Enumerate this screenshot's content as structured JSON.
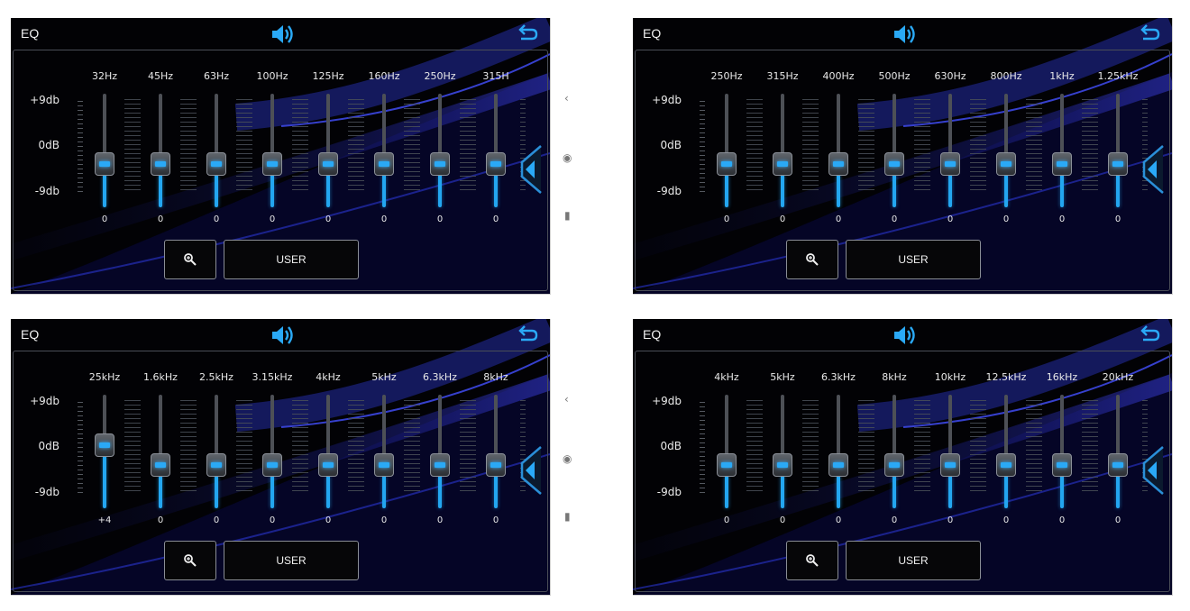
{
  "panels": [
    {
      "title": "EQ",
      "scale": {
        "top": "+9db",
        "mid": "0dB",
        "bottom": "-9db"
      },
      "bands": [
        {
          "freq": "32Hz",
          "value": "0",
          "level": 0
        },
        {
          "freq": "45Hz",
          "value": "0",
          "level": 0
        },
        {
          "freq": "63Hz",
          "value": "0",
          "level": 0
        },
        {
          "freq": "100Hz",
          "value": "0",
          "level": 0
        },
        {
          "freq": "125Hz",
          "value": "0",
          "level": 0
        },
        {
          "freq": "160Hz",
          "value": "0",
          "level": 0
        },
        {
          "freq": "250Hz",
          "value": "0",
          "level": 0
        },
        {
          "freq": "315H",
          "value": "0",
          "level": 0
        }
      ],
      "user_label": "USER"
    },
    {
      "title": "EQ",
      "scale": {
        "top": "+9db",
        "mid": "0dB",
        "bottom": "-9db"
      },
      "bands": [
        {
          "freq": "250Hz",
          "value": "0",
          "level": 0
        },
        {
          "freq": "315Hz",
          "value": "0",
          "level": 0
        },
        {
          "freq": "400Hz",
          "value": "0",
          "level": 0
        },
        {
          "freq": "500Hz",
          "value": "0",
          "level": 0
        },
        {
          "freq": "630Hz",
          "value": "0",
          "level": 0
        },
        {
          "freq": "800Hz",
          "value": "0",
          "level": 0
        },
        {
          "freq": "1kHz",
          "value": "0",
          "level": 0
        },
        {
          "freq": "1.25kHz",
          "value": "0",
          "level": 0
        }
      ],
      "user_label": "USER"
    },
    {
      "title": "EQ",
      "scale": {
        "top": "+9db",
        "mid": "0dB",
        "bottom": "-9db"
      },
      "bands": [
        {
          "freq": "25kHz",
          "value": "+4",
          "level": 4
        },
        {
          "freq": "1.6kHz",
          "value": "0",
          "level": 0
        },
        {
          "freq": "2.5kHz",
          "value": "0",
          "level": 0
        },
        {
          "freq": "3.15kHz",
          "value": "0",
          "level": 0
        },
        {
          "freq": "4kHz",
          "value": "0",
          "level": 0
        },
        {
          "freq": "5kHz",
          "value": "0",
          "level": 0
        },
        {
          "freq": "6.3kHz",
          "value": "0",
          "level": 0
        },
        {
          "freq": "8kHz",
          "value": "0",
          "level": 0
        }
      ],
      "user_label": "USER"
    },
    {
      "title": "EQ",
      "scale": {
        "top": "+9db",
        "mid": "0dB",
        "bottom": "-9db"
      },
      "bands": [
        {
          "freq": "4kHz",
          "value": "0",
          "level": 0
        },
        {
          "freq": "5kHz",
          "value": "0",
          "level": 0
        },
        {
          "freq": "6.3kHz",
          "value": "0",
          "level": 0
        },
        {
          "freq": "8kHz",
          "value": "0",
          "level": 0
        },
        {
          "freq": "10kHz",
          "value": "0",
          "level": 0
        },
        {
          "freq": "12.5kHz",
          "value": "0",
          "level": 0
        },
        {
          "freq": "16kHz",
          "value": "0",
          "level": 0
        },
        {
          "freq": "20kHz",
          "value": "0",
          "level": 0
        }
      ],
      "user_label": "USER"
    }
  ],
  "icons": {
    "volume": "speaker-icon",
    "back": "back-arrow-icon",
    "zoom": "zoom-icon",
    "side": "chevron-left-icon"
  },
  "colors": {
    "accent": "#23a6f0",
    "background": "#020205"
  }
}
